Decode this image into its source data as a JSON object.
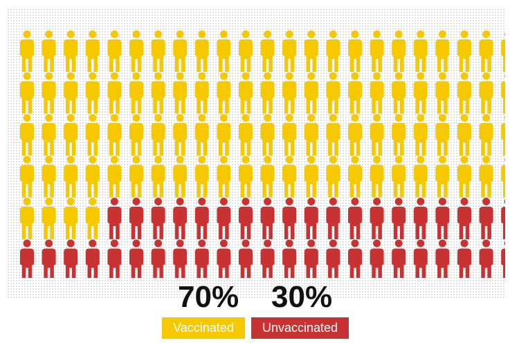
{
  "chart_data": {
    "type": "pictograph",
    "unit": "person",
    "total_icons": 138,
    "rows": 6,
    "columns": 23,
    "series": [
      {
        "name": "Vaccinated",
        "percent_label": "70%",
        "value": 70,
        "icons": 96,
        "color": "#f5c800"
      },
      {
        "name": "Unvaccinated",
        "percent_label": "30%",
        "value": 30,
        "icons": 42,
        "color": "#c83232"
      }
    ]
  }
}
